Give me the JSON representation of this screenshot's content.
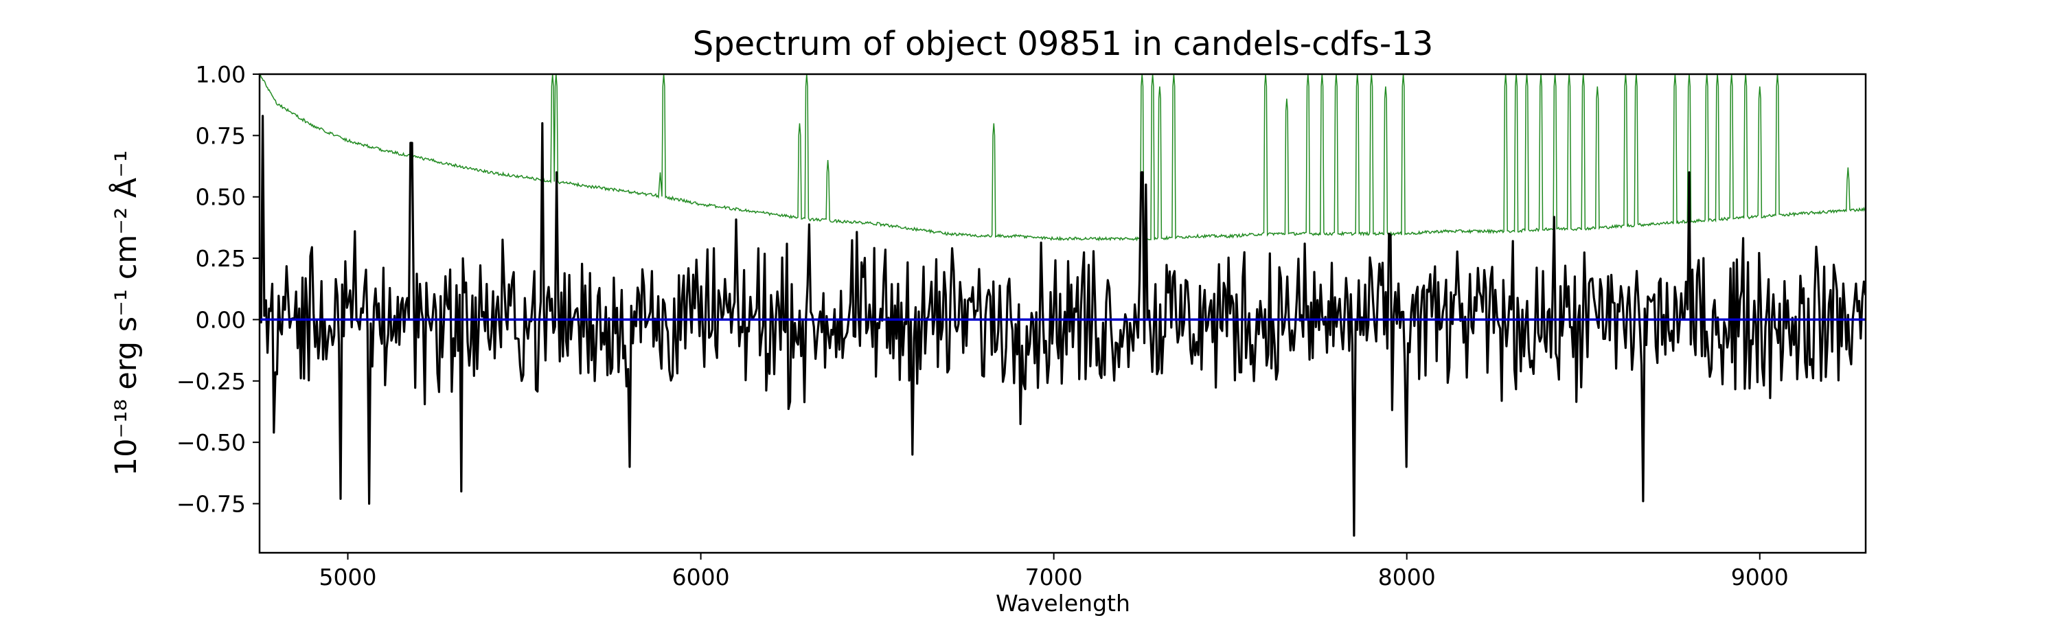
{
  "chart_data": {
    "type": "line",
    "title": "Spectrum of object 09851 in candels-cdfs-13",
    "xlabel": "Wavelength",
    "ylabel": "10⁻¹⁸ erg s⁻¹ cm⁻² Å⁻¹",
    "xlim": [
      4750,
      9300
    ],
    "ylim": [
      -0.95,
      1.0
    ],
    "x_ticks": [
      5000,
      6000,
      7000,
      8000,
      9000
    ],
    "y_ticks": [
      -0.75,
      -0.5,
      -0.25,
      0.0,
      0.25,
      0.5,
      0.75,
      1.0
    ],
    "y_tick_labels": [
      "−0.75",
      "−0.50",
      "−0.25",
      "0.00",
      "0.25",
      "0.50",
      "0.75",
      "1.00"
    ],
    "grid": false,
    "series": [
      {
        "color": "#228b22",
        "points": [
          [
            4750,
            1.0
          ],
          [
            4800,
            0.88
          ],
          [
            4900,
            0.79
          ],
          [
            5000,
            0.73
          ],
          [
            5100,
            0.69
          ],
          [
            5200,
            0.66
          ],
          [
            5300,
            0.63
          ],
          [
            5400,
            0.6
          ],
          [
            5500,
            0.58
          ],
          [
            5600,
            0.56
          ],
          [
            5700,
            0.54
          ],
          [
            5800,
            0.52
          ],
          [
            5900,
            0.5
          ],
          [
            6000,
            0.47
          ],
          [
            6100,
            0.45
          ],
          [
            6200,
            0.43
          ],
          [
            6300,
            0.41
          ],
          [
            6400,
            0.4
          ],
          [
            6500,
            0.39
          ],
          [
            6600,
            0.37
          ],
          [
            6700,
            0.35
          ],
          [
            6800,
            0.34
          ],
          [
            6900,
            0.34
          ],
          [
            7000,
            0.33
          ],
          [
            7100,
            0.33
          ],
          [
            7200,
            0.33
          ],
          [
            7300,
            0.33
          ],
          [
            7400,
            0.34
          ],
          [
            7500,
            0.34
          ],
          [
            7600,
            0.35
          ],
          [
            7700,
            0.35
          ],
          [
            7800,
            0.35
          ],
          [
            7900,
            0.35
          ],
          [
            8000,
            0.35
          ],
          [
            8100,
            0.36
          ],
          [
            8200,
            0.36
          ],
          [
            8300,
            0.36
          ],
          [
            8400,
            0.37
          ],
          [
            8500,
            0.37
          ],
          [
            8600,
            0.38
          ],
          [
            8700,
            0.39
          ],
          [
            8800,
            0.4
          ],
          [
            8900,
            0.41
          ],
          [
            9000,
            0.42
          ],
          [
            9100,
            0.43
          ],
          [
            9200,
            0.44
          ],
          [
            9300,
            0.45
          ]
        ],
        "spikes": [
          [
            5580,
            1.0
          ],
          [
            5590,
            1.0
          ],
          [
            5885,
            0.6
          ],
          [
            5895,
            1.0
          ],
          [
            6280,
            0.8
          ],
          [
            6300,
            1.0
          ],
          [
            6360,
            0.65
          ],
          [
            6830,
            0.8
          ],
          [
            7250,
            1.0
          ],
          [
            7280,
            1.0
          ],
          [
            7300,
            0.95
          ],
          [
            7340,
            1.0
          ],
          [
            7600,
            1.0
          ],
          [
            7660,
            0.9
          ],
          [
            7720,
            1.0
          ],
          [
            7760,
            1.0
          ],
          [
            7800,
            1.0
          ],
          [
            7860,
            1.0
          ],
          [
            7900,
            1.0
          ],
          [
            7940,
            0.95
          ],
          [
            7990,
            1.0
          ],
          [
            8280,
            1.0
          ],
          [
            8310,
            1.0
          ],
          [
            8340,
            1.0
          ],
          [
            8380,
            1.0
          ],
          [
            8420,
            1.0
          ],
          [
            8460,
            1.0
          ],
          [
            8500,
            1.0
          ],
          [
            8540,
            0.95
          ],
          [
            8620,
            1.0
          ],
          [
            8650,
            1.0
          ],
          [
            8760,
            1.0
          ],
          [
            8800,
            1.0
          ],
          [
            8850,
            1.0
          ],
          [
            8880,
            1.0
          ],
          [
            8920,
            1.0
          ],
          [
            8960,
            1.0
          ],
          [
            9000,
            0.95
          ],
          [
            9050,
            1.0
          ],
          [
            9250,
            0.62
          ]
        ]
      },
      {
        "color": "#000000",
        "noise_sigma": 0.22,
        "extremes": [
          [
            4760,
            0.83
          ],
          [
            4790,
            -0.46
          ],
          [
            4980,
            -0.73
          ],
          [
            5060,
            -0.75
          ],
          [
            5180,
            0.72
          ],
          [
            5320,
            -0.7
          ],
          [
            5550,
            0.8
          ],
          [
            5590,
            0.6
          ],
          [
            5800,
            -0.6
          ],
          [
            5890,
            -0.2
          ],
          [
            6600,
            -0.55
          ],
          [
            7250,
            0.6
          ],
          [
            7260,
            0.55
          ],
          [
            7850,
            -0.88
          ],
          [
            7950,
            0.35
          ],
          [
            8000,
            -0.6
          ],
          [
            8670,
            -0.74
          ],
          [
            8800,
            0.6
          ],
          [
            9300,
            0.1
          ]
        ]
      },
      {
        "color": "#0000cd",
        "points": [
          [
            4750,
            0.0
          ],
          [
            9300,
            0.0
          ]
        ]
      }
    ]
  }
}
